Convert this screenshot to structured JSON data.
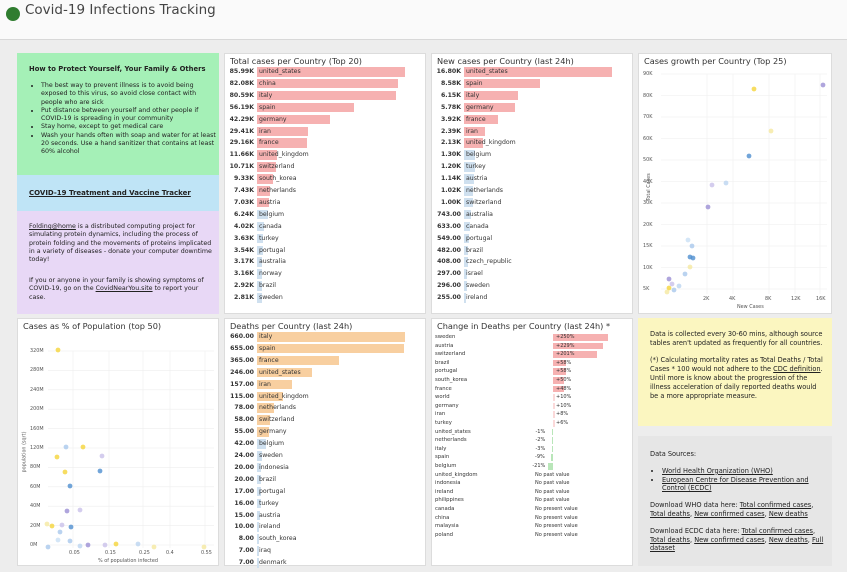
{
  "app": {
    "title": "Covid-19 Infections Tracking"
  },
  "info": {
    "heading": "How to Protect Yourself, Your Family & Others",
    "bullets": [
      "The best way to prevent illness is to avoid being exposed to this virus, so avoid close contact with people who are sick",
      "Put distance between yourself and other people if COVID-19 is spreading in your community",
      "Stay home, except to get medical care",
      "Wash your hands often with soap and water for at least 20 seconds. Use a hand sanitizer that contains at least 60% alcohol"
    ],
    "tracker_link": "COVID-19 Treatment and Vaccine Tracker",
    "folding_link": "Folding@home",
    "folding_text": " is a distributed computing project for simulating protein dynamics, including the process of protein folding and the movements of proteins implicated in a variety of diseases - donate your computer downtime today!",
    "report_pre": "If you or anyone in your family is showing symptoms of COVID-19, go on the ",
    "report_link": "CovidNearYou.site",
    "report_post": " to report your case."
  },
  "total_cases": {
    "title": "Total cases per Country (Top 20)",
    "rows": [
      {
        "value": "85.99K",
        "label": "united_states",
        "frac": 1.0
      },
      {
        "value": "82.08K",
        "label": "china",
        "frac": 0.955
      },
      {
        "value": "80.59K",
        "label": "italy",
        "frac": 0.937
      },
      {
        "value": "56.19K",
        "label": "spain",
        "frac": 0.653
      },
      {
        "value": "42.29K",
        "label": "germany",
        "frac": 0.492
      },
      {
        "value": "29.41K",
        "label": "iran",
        "frac": 0.342
      },
      {
        "value": "29.16K",
        "label": "france",
        "frac": 0.339
      },
      {
        "value": "11.66K",
        "label": "united_kingdom",
        "frac": 0.136
      },
      {
        "value": "10.71K",
        "label": "switzerland",
        "frac": 0.125
      },
      {
        "value": "9.33K",
        "label": "south_korea",
        "frac": 0.108
      },
      {
        "value": "7.43K",
        "label": "netherlands",
        "frac": 0.086
      },
      {
        "value": "7.03K",
        "label": "austria",
        "frac": 0.082
      },
      {
        "value": "6.24K",
        "label": "belgium",
        "frac": 0.073
      },
      {
        "value": "4.02K",
        "label": "canada",
        "frac": 0.047
      },
      {
        "value": "3.63K",
        "label": "turkey",
        "frac": 0.042
      },
      {
        "value": "3.54K",
        "label": "portugal",
        "frac": 0.041
      },
      {
        "value": "3.17K",
        "label": "australia",
        "frac": 0.037
      },
      {
        "value": "3.16K",
        "label": "norway",
        "frac": 0.037
      },
      {
        "value": "2.92K",
        "label": "brazil",
        "frac": 0.034
      },
      {
        "value": "2.81K",
        "label": "sweden",
        "frac": 0.033
      }
    ]
  },
  "new_cases": {
    "title": "New cases per Country (last 24h)",
    "rows": [
      {
        "value": "16.80K",
        "label": "united_states",
        "frac": 1.0
      },
      {
        "value": "8.58K",
        "label": "spain",
        "frac": 0.511
      },
      {
        "value": "6.15K",
        "label": "italy",
        "frac": 0.366
      },
      {
        "value": "5.78K",
        "label": "germany",
        "frac": 0.344
      },
      {
        "value": "3.92K",
        "label": "france",
        "frac": 0.233
      },
      {
        "value": "2.39K",
        "label": "iran",
        "frac": 0.142
      },
      {
        "value": "2.13K",
        "label": "united_kingdom",
        "frac": 0.127
      },
      {
        "value": "1.30K",
        "label": "belgium",
        "frac": 0.077
      },
      {
        "value": "1.20K",
        "label": "turkey",
        "frac": 0.071
      },
      {
        "value": "1.14K",
        "label": "austria",
        "frac": 0.068
      },
      {
        "value": "1.02K",
        "label": "netherlands",
        "frac": 0.061
      },
      {
        "value": "1.00K",
        "label": "switzerland",
        "frac": 0.06
      },
      {
        "value": "743.00",
        "label": "australia",
        "frac": 0.044
      },
      {
        "value": "633.00",
        "label": "canada",
        "frac": 0.038
      },
      {
        "value": "549.00",
        "label": "portugal",
        "frac": 0.033
      },
      {
        "value": "482.00",
        "label": "brazil",
        "frac": 0.029
      },
      {
        "value": "408.00",
        "label": "czech_republic",
        "frac": 0.024
      },
      {
        "value": "297.00",
        "label": "israel",
        "frac": 0.018
      },
      {
        "value": "296.00",
        "label": "sweden",
        "frac": 0.018
      },
      {
        "value": "255.00",
        "label": "ireland",
        "frac": 0.015
      }
    ]
  },
  "growth": {
    "title": "Cases growth per Country (Top 25)",
    "xlabel": "New Cases",
    "ylabel": "Total Cases",
    "xticks": [
      "2K",
      "4K",
      "8K",
      "12K",
      "16K"
    ],
    "yticks": [
      "90K",
      "80K",
      "70K",
      "60K",
      "50K",
      "40K",
      "30K",
      "20K",
      "15K",
      "10K",
      "5K"
    ]
  },
  "population": {
    "title": "Cases as % of Population (top 50)",
    "xlabel": "% of population infected",
    "ylabel": "population (sqrt)",
    "xticks": [
      "0.05",
      "0.15",
      "0.25",
      "0.4",
      "0.55"
    ],
    "yticks": [
      "320M",
      "280M",
      "240M",
      "200M",
      "160M",
      "120M",
      "80M",
      "60M",
      "40M",
      "20M",
      "0M"
    ]
  },
  "deaths": {
    "title": "Deaths per Country (last 24h)",
    "rows": [
      {
        "value": "660.00",
        "label": "italy",
        "frac": 1.0
      },
      {
        "value": "655.00",
        "label": "spain",
        "frac": 0.992
      },
      {
        "value": "365.00",
        "label": "france",
        "frac": 0.553
      },
      {
        "value": "246.00",
        "label": "united_states",
        "frac": 0.373
      },
      {
        "value": "157.00",
        "label": "iran",
        "frac": 0.238
      },
      {
        "value": "115.00",
        "label": "united_kingdom",
        "frac": 0.174
      },
      {
        "value": "78.00",
        "label": "netherlands",
        "frac": 0.118
      },
      {
        "value": "58.00",
        "label": "switzerland",
        "frac": 0.088
      },
      {
        "value": "55.00",
        "label": "germany",
        "frac": 0.083
      },
      {
        "value": "42.00",
        "label": "belgium",
        "frac": 0.064
      },
      {
        "value": "24.00",
        "label": "sweden",
        "frac": 0.036
      },
      {
        "value": "20.00",
        "label": "indonesia",
        "frac": 0.03
      },
      {
        "value": "20.00",
        "label": "brazil",
        "frac": 0.03
      },
      {
        "value": "17.00",
        "label": "portugal",
        "frac": 0.026
      },
      {
        "value": "16.00",
        "label": "turkey",
        "frac": 0.024
      },
      {
        "value": "15.00",
        "label": "austria",
        "frac": 0.023
      },
      {
        "value": "10.00",
        "label": "ireland",
        "frac": 0.015
      },
      {
        "value": "8.00",
        "label": "south_korea",
        "frac": 0.012
      },
      {
        "value": "7.00",
        "label": "iraq",
        "frac": 0.011
      },
      {
        "value": "7.00",
        "label": "denmark",
        "frac": 0.011
      }
    ]
  },
  "change": {
    "title": "Change in Deaths per Country (last 24h) *",
    "rows": [
      {
        "label": "sweden",
        "value": "+250%",
        "pct": 250
      },
      {
        "label": "austria",
        "value": "+229%",
        "pct": 229
      },
      {
        "label": "switzerland",
        "value": "+201%",
        "pct": 201
      },
      {
        "label": "brazil",
        "value": "+58%",
        "pct": 58
      },
      {
        "label": "portugal",
        "value": "+58%",
        "pct": 58
      },
      {
        "label": "south_korea",
        "value": "+50%",
        "pct": 50
      },
      {
        "label": "france",
        "value": "+48%",
        "pct": 48
      },
      {
        "label": "world",
        "value": "+10%",
        "pct": 10
      },
      {
        "label": "germany",
        "value": "+10%",
        "pct": 10
      },
      {
        "label": "iran",
        "value": "+8%",
        "pct": 8
      },
      {
        "label": "turkey",
        "value": "+6%",
        "pct": 6
      },
      {
        "label": "united_states",
        "value": "-1%",
        "pct": -1
      },
      {
        "label": "netherlands",
        "value": "-2%",
        "pct": -2
      },
      {
        "label": "italy",
        "value": "-3%",
        "pct": -3
      },
      {
        "label": "spain",
        "value": "-9%",
        "pct": -9
      },
      {
        "label": "belgium",
        "value": "-21%",
        "pct": -21
      },
      {
        "label": "united_kingdom",
        "value": "No past value",
        "pct": null
      },
      {
        "label": "indonesia",
        "value": "No past value",
        "pct": null
      },
      {
        "label": "ireland",
        "value": "No past value",
        "pct": null
      },
      {
        "label": "philippines",
        "value": "No past value",
        "pct": null
      },
      {
        "label": "canada",
        "value": "No present value",
        "pct": null
      },
      {
        "label": "china",
        "value": "No present value",
        "pct": null
      },
      {
        "label": "malaysia",
        "value": "No present value",
        "pct": null
      },
      {
        "label": "poland",
        "value": "No present value",
        "pct": null
      }
    ]
  },
  "notes": {
    "p1": "Data is collected every 30-60 mins, although source tables aren't updated as frequently for all countries.",
    "p2_pre": "(*) Calculating mortality rates as Total Deaths / Total Cases * 100 would not adhere to the ",
    "p2_link": "CDC definition",
    "p2_post": ". Until more is know about the progression of the illness acceleration of daily reported deaths would be a more appropriate measure."
  },
  "sources": {
    "heading": "Data Sources:",
    "items": [
      "World Health Organization (WHO)",
      "European Centre for Disease Prevention and Control (ECDC)"
    ],
    "who_pre": "Download WHO data here: ",
    "who_links": [
      "Total confirmed cases",
      "Total deaths",
      "New confirmed cases",
      "New deaths"
    ],
    "ecdc_pre": "Download ECDC data here: ",
    "ecdc_links": [
      "Total confirmed cases",
      "Total deaths",
      "New confirmed cases",
      "New deaths",
      "Full dataset"
    ]
  },
  "colors": {
    "cases_bar": "#f6b1b1",
    "deaths_bar": "#f8cfa0",
    "low_bar": "#cfe0ef",
    "info_green": "#a5f0b7",
    "info_blue": "#bfe4f6",
    "info_purple": "#e8d8f6",
    "notes_yellow": "#fbf6c0",
    "sources_gray": "#e6e6e6"
  }
}
